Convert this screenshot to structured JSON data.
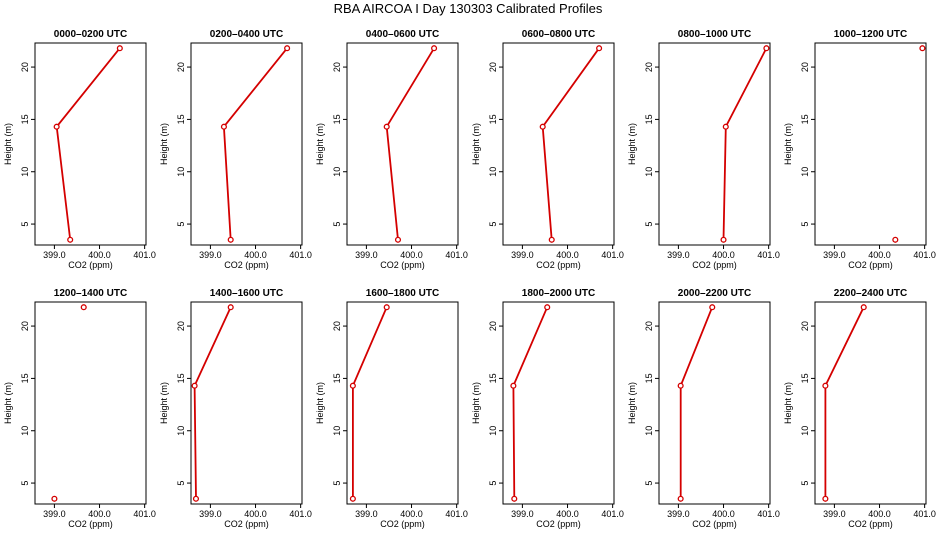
{
  "page_title": "RBA AIRCOA I  Day 130303  Calibrated Profiles",
  "series_color": "#d40000",
  "chart_data": [
    {
      "type": "line",
      "title": "0000–0200 UTC",
      "xlabel": "CO2 (ppm)",
      "ylabel": "Height (m)",
      "x": [
        399.35,
        399.05,
        400.45
      ],
      "y": [
        3.5,
        14.3,
        21.8
      ],
      "xlim": [
        398.57,
        401.03
      ],
      "ylim": [
        3.0,
        22.3
      ],
      "xticks": [
        "399.0",
        "400.0",
        "401.0"
      ],
      "yticks": [
        "5",
        "10",
        "15",
        "20"
      ]
    },
    {
      "type": "line",
      "title": "0200–0400 UTC",
      "xlabel": "CO2 (ppm)",
      "ylabel": "Height (m)",
      "x": [
        399.45,
        399.3,
        400.7
      ],
      "y": [
        3.5,
        14.3,
        21.8
      ],
      "xlim": [
        398.57,
        401.03
      ],
      "ylim": [
        3.0,
        22.3
      ],
      "xticks": [
        "399.0",
        "400.0",
        "401.0"
      ],
      "yticks": [
        "5",
        "10",
        "15",
        "20"
      ]
    },
    {
      "type": "line",
      "title": "0400–0600 UTC",
      "xlabel": "CO2 (ppm)",
      "ylabel": "Height (m)",
      "x": [
        399.7,
        399.45,
        400.5
      ],
      "y": [
        3.5,
        14.3,
        21.8
      ],
      "xlim": [
        398.57,
        401.03
      ],
      "ylim": [
        3.0,
        22.3
      ],
      "xticks": [
        "399.0",
        "400.0",
        "401.0"
      ],
      "yticks": [
        "5",
        "10",
        "15",
        "20"
      ]
    },
    {
      "type": "line",
      "title": "0600–0800 UTC",
      "xlabel": "CO2 (ppm)",
      "ylabel": "Height (m)",
      "x": [
        399.65,
        399.45,
        400.7
      ],
      "y": [
        3.5,
        14.3,
        21.8
      ],
      "xlim": [
        398.57,
        401.03
      ],
      "ylim": [
        3.0,
        22.3
      ],
      "xticks": [
        "399.0",
        "400.0",
        "401.0"
      ],
      "yticks": [
        "5",
        "10",
        "15",
        "20"
      ]
    },
    {
      "type": "line",
      "title": "0800–1000 UTC",
      "xlabel": "CO2 (ppm)",
      "ylabel": "Height (m)",
      "x": [
        400.0,
        400.05,
        400.95
      ],
      "y": [
        3.5,
        14.3,
        21.8
      ],
      "xlim": [
        398.57,
        401.03
      ],
      "ylim": [
        3.0,
        22.3
      ],
      "xticks": [
        "399.0",
        "400.0",
        "401.0"
      ],
      "yticks": [
        "5",
        "10",
        "15",
        "20"
      ]
    },
    {
      "type": "scatter",
      "title": "1000–1200 UTC",
      "xlabel": "CO2 (ppm)",
      "ylabel": "Height (m)",
      "x": [
        400.35,
        400.95
      ],
      "y": [
        3.5,
        21.8
      ],
      "xlim": [
        398.57,
        401.03
      ],
      "ylim": [
        3.0,
        22.3
      ],
      "xticks": [
        "399.0",
        "400.0",
        "401.0"
      ],
      "yticks": [
        "5",
        "10",
        "15",
        "20"
      ]
    },
    {
      "type": "scatter",
      "title": "1200–1400 UTC",
      "xlabel": "CO2 (ppm)",
      "ylabel": "Height (m)",
      "x": [
        399.0,
        399.65
      ],
      "y": [
        3.5,
        21.8
      ],
      "xlim": [
        398.57,
        401.03
      ],
      "ylim": [
        3.0,
        22.3
      ],
      "xticks": [
        "399.0",
        "400.0",
        "401.0"
      ],
      "yticks": [
        "5",
        "10",
        "15",
        "20"
      ]
    },
    {
      "type": "line",
      "title": "1400–1600 UTC",
      "xlabel": "CO2 (ppm)",
      "ylabel": "Height (m)",
      "x": [
        398.68,
        398.65,
        399.45
      ],
      "y": [
        3.5,
        14.3,
        21.8
      ],
      "xlim": [
        398.57,
        401.03
      ],
      "ylim": [
        3.0,
        22.3
      ],
      "xticks": [
        "399.0",
        "400.0",
        "401.0"
      ],
      "yticks": [
        "5",
        "10",
        "15",
        "20"
      ]
    },
    {
      "type": "line",
      "title": "1600–1800 UTC",
      "xlabel": "CO2 (ppm)",
      "ylabel": "Height (m)",
      "x": [
        398.7,
        398.7,
        399.45
      ],
      "y": [
        3.5,
        14.3,
        21.8
      ],
      "xlim": [
        398.57,
        401.03
      ],
      "ylim": [
        3.0,
        22.3
      ],
      "xticks": [
        "399.0",
        "400.0",
        "401.0"
      ],
      "yticks": [
        "5",
        "10",
        "15",
        "20"
      ]
    },
    {
      "type": "line",
      "title": "1800–2000 UTC",
      "xlabel": "CO2 (ppm)",
      "ylabel": "Height (m)",
      "x": [
        398.82,
        398.8,
        399.55
      ],
      "y": [
        3.5,
        14.3,
        21.8
      ],
      "xlim": [
        398.57,
        401.03
      ],
      "ylim": [
        3.0,
        22.3
      ],
      "xticks": [
        "399.0",
        "400.0",
        "401.0"
      ],
      "yticks": [
        "5",
        "10",
        "15",
        "20"
      ]
    },
    {
      "type": "line",
      "title": "2000–2200 UTC",
      "xlabel": "CO2 (ppm)",
      "ylabel": "Height (m)",
      "x": [
        399.05,
        399.05,
        399.75
      ],
      "y": [
        3.5,
        14.3,
        21.8
      ],
      "xlim": [
        398.57,
        401.03
      ],
      "ylim": [
        3.0,
        22.3
      ],
      "xticks": [
        "399.0",
        "400.0",
        "401.0"
      ],
      "yticks": [
        "5",
        "10",
        "15",
        "20"
      ]
    },
    {
      "type": "line",
      "title": "2200–2400 UTC",
      "xlabel": "CO2 (ppm)",
      "ylabel": "Height (m)",
      "x": [
        398.8,
        398.8,
        399.65
      ],
      "y": [
        3.5,
        14.3,
        21.8
      ],
      "xlim": [
        398.57,
        401.03
      ],
      "ylim": [
        3.0,
        22.3
      ],
      "xticks": [
        "399.0",
        "400.0",
        "401.0"
      ],
      "yticks": [
        "5",
        "10",
        "15",
        "20"
      ]
    }
  ]
}
